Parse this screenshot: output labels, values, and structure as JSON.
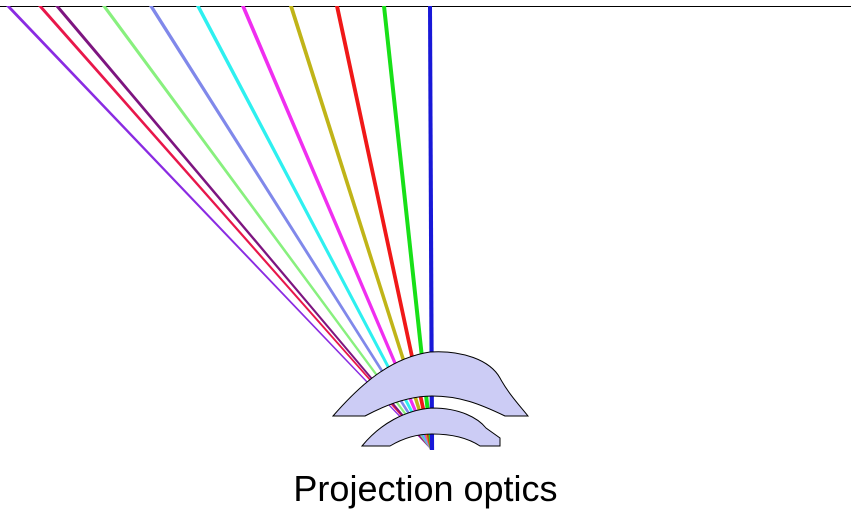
{
  "caption": "Projection optics",
  "colors": {
    "background": "#ffffff",
    "screen_line": "#000000",
    "lens_fill": "#ccccf5",
    "lens_stroke": "#000000"
  },
  "rays": [
    {
      "name": "ray-violet",
      "color": "#8a2be2"
    },
    {
      "name": "ray-crimson",
      "color": "#e8174a"
    },
    {
      "name": "ray-purple",
      "color": "#7d1580"
    },
    {
      "name": "ray-lightgreen",
      "color": "#88f07e"
    },
    {
      "name": "ray-periwinkle",
      "color": "#8088ea"
    },
    {
      "name": "ray-cyan",
      "color": "#2ef0f0"
    },
    {
      "name": "ray-magenta",
      "color": "#f02ef0"
    },
    {
      "name": "ray-olive",
      "color": "#c0b418"
    },
    {
      "name": "ray-red",
      "color": "#f01818"
    },
    {
      "name": "ray-green",
      "color": "#18e018"
    },
    {
      "name": "ray-blue",
      "color": "#1818d8"
    }
  ]
}
